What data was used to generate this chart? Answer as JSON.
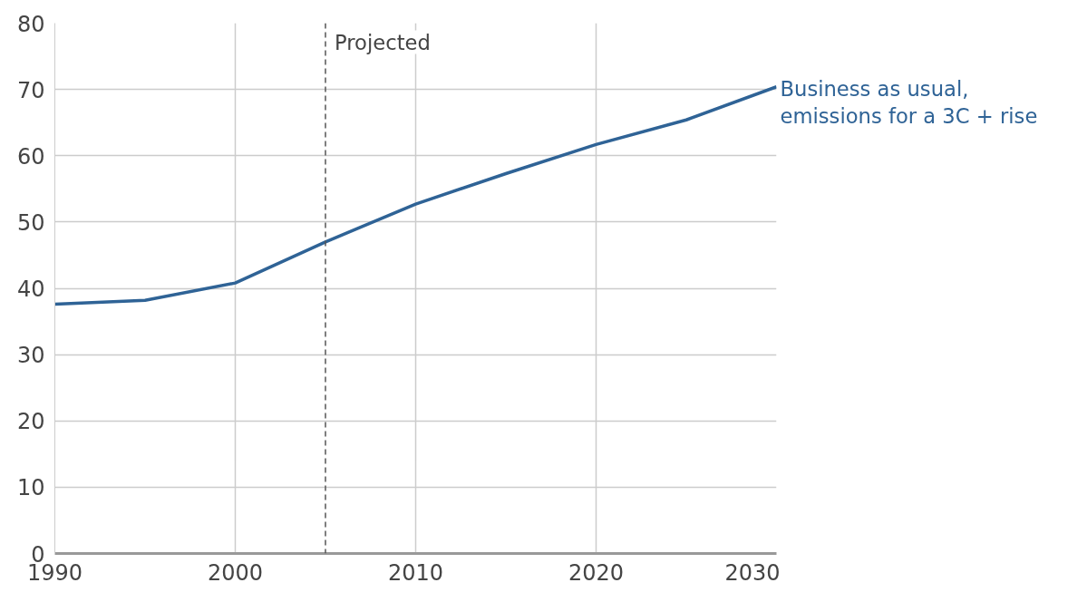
{
  "chart_data": {
    "type": "line",
    "x": [
      1990,
      1995,
      2000,
      2005,
      2010,
      2015,
      2020,
      2025,
      2030
    ],
    "series": [
      {
        "name": "Business as usual,\nemissions for a 3C + rise",
        "color": "#2f6396",
        "values": [
          37.6,
          38.2,
          40.8,
          47.0,
          52.7,
          57.3,
          61.7,
          65.4,
          70.4
        ]
      }
    ],
    "xlim": [
      1990,
      2030
    ],
    "xticks": [
      1990,
      2000,
      2010,
      2020,
      2030
    ],
    "ylim": [
      0,
      80
    ],
    "yticks": [
      0,
      10,
      20,
      30,
      40,
      50,
      60,
      70,
      80
    ],
    "ref_lines": [
      {
        "axis": "x",
        "value": 2005,
        "label": "Projected",
        "line_style": "dashed",
        "color": "#555555"
      }
    ],
    "grid": true,
    "marker": "none",
    "line_style": "solid",
    "legend": false
  }
}
